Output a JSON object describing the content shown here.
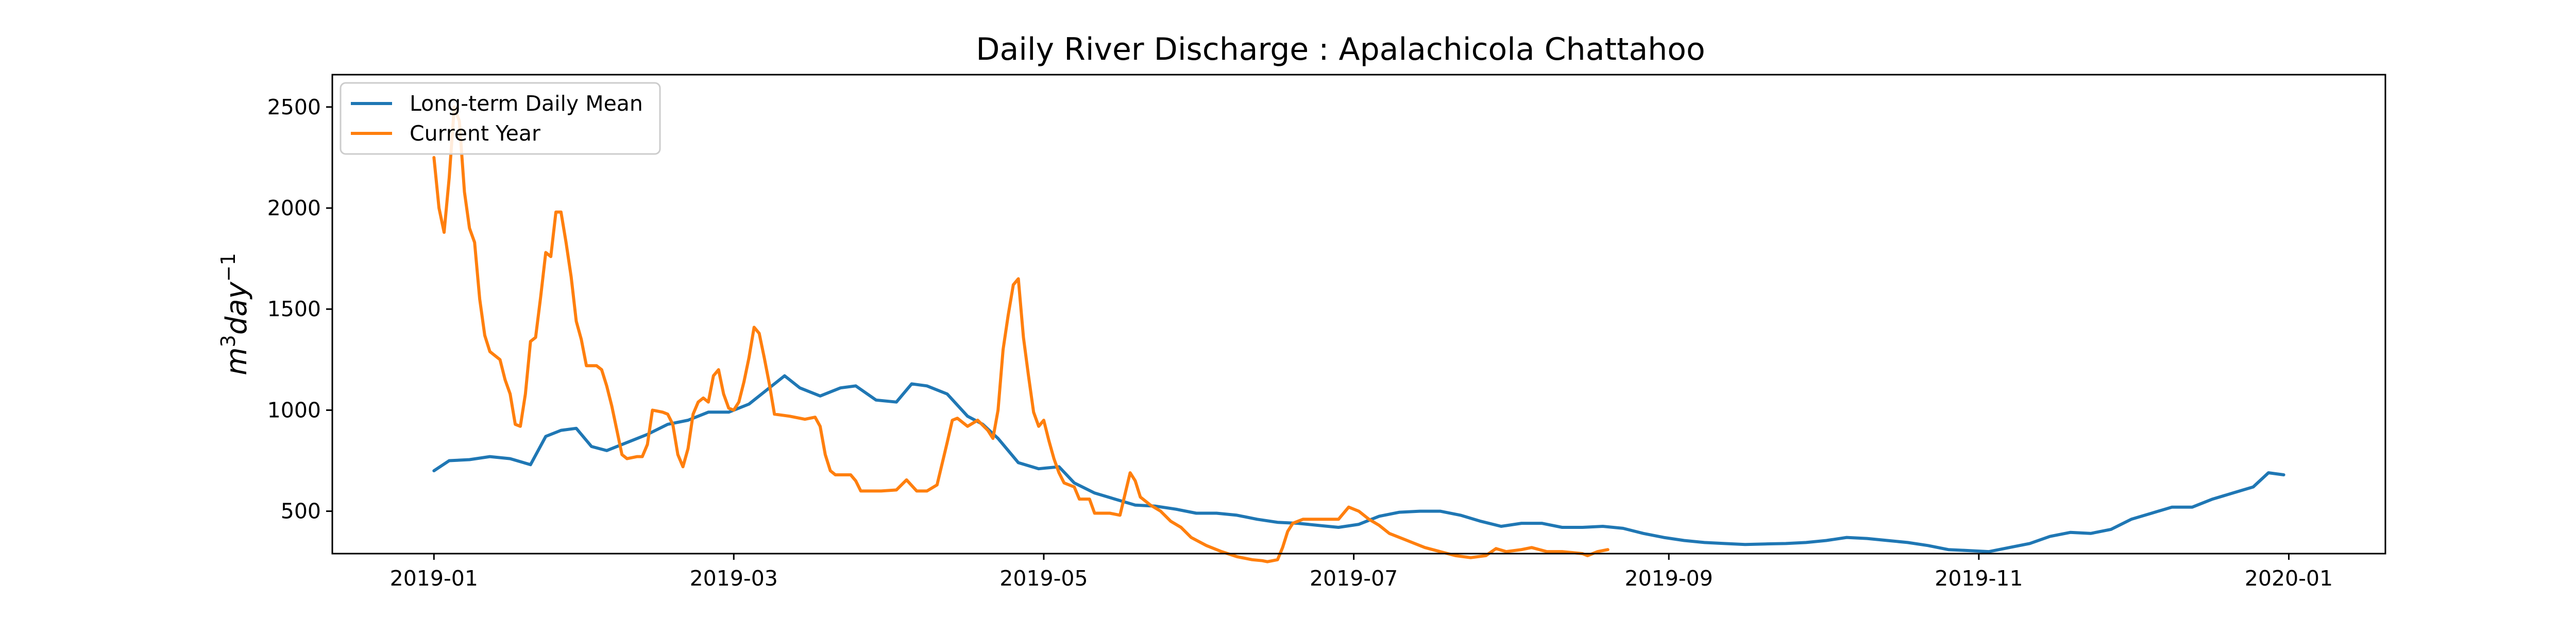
{
  "chart_data": {
    "type": "line",
    "title": "Daily River Discharge : Apalachicola Chattahoo",
    "xlabel": "",
    "ylabel": "m³day⁻¹",
    "ylabel_parts": {
      "base1": "m",
      "exp1": "3",
      "base2": "day",
      "exp2": "−1"
    },
    "x_axis_type": "date",
    "xlim": [
      "2018-12-12",
      "2020-01-20"
    ],
    "ylim": [
      290,
      2660
    ],
    "x_ticks": [
      "2019-01",
      "2019-03",
      "2019-05",
      "2019-07",
      "2019-09",
      "2019-11",
      "2020-01"
    ],
    "x_tick_dates": [
      "2019-01-01",
      "2019-03-01",
      "2019-05-01",
      "2019-07-01",
      "2019-09-01",
      "2019-11-01",
      "2020-01-01"
    ],
    "y_ticks": [
      500,
      1000,
      1500,
      2000,
      2500
    ],
    "grid": false,
    "legend_position": "top-left",
    "series": [
      {
        "name": "Long-term Daily Mean",
        "color": "#1f77b4",
        "points": [
          [
            "2019-01-01",
            700
          ],
          [
            "2019-01-04",
            750
          ],
          [
            "2019-01-08",
            755
          ],
          [
            "2019-01-12",
            770
          ],
          [
            "2019-01-16",
            760
          ],
          [
            "2019-01-20",
            730
          ],
          [
            "2019-01-23",
            870
          ],
          [
            "2019-01-26",
            900
          ],
          [
            "2019-01-29",
            910
          ],
          [
            "2019-02-01",
            820
          ],
          [
            "2019-02-04",
            800
          ],
          [
            "2019-02-08",
            840
          ],
          [
            "2019-02-12",
            880
          ],
          [
            "2019-02-16",
            930
          ],
          [
            "2019-02-20",
            950
          ],
          [
            "2019-02-24",
            990
          ],
          [
            "2019-02-28",
            990
          ],
          [
            "2019-03-04",
            1030
          ],
          [
            "2019-03-08",
            1110
          ],
          [
            "2019-03-11",
            1170
          ],
          [
            "2019-03-14",
            1110
          ],
          [
            "2019-03-18",
            1070
          ],
          [
            "2019-03-22",
            1110
          ],
          [
            "2019-03-25",
            1120
          ],
          [
            "2019-03-29",
            1050
          ],
          [
            "2019-04-02",
            1040
          ],
          [
            "2019-04-05",
            1130
          ],
          [
            "2019-04-08",
            1120
          ],
          [
            "2019-04-12",
            1080
          ],
          [
            "2019-04-16",
            970
          ],
          [
            "2019-04-19",
            930
          ],
          [
            "2019-04-22",
            860
          ],
          [
            "2019-04-26",
            740
          ],
          [
            "2019-04-30",
            710
          ],
          [
            "2019-05-04",
            720
          ],
          [
            "2019-05-07",
            640
          ],
          [
            "2019-05-11",
            590
          ],
          [
            "2019-05-15",
            560
          ],
          [
            "2019-05-19",
            530
          ],
          [
            "2019-05-23",
            525
          ],
          [
            "2019-05-27",
            510
          ],
          [
            "2019-05-31",
            490
          ],
          [
            "2019-06-04",
            490
          ],
          [
            "2019-06-08",
            480
          ],
          [
            "2019-06-12",
            460
          ],
          [
            "2019-06-16",
            445
          ],
          [
            "2019-06-20",
            440
          ],
          [
            "2019-06-24",
            430
          ],
          [
            "2019-06-28",
            420
          ],
          [
            "2019-07-02",
            435
          ],
          [
            "2019-07-06",
            475
          ],
          [
            "2019-07-10",
            495
          ],
          [
            "2019-07-14",
            500
          ],
          [
            "2019-07-18",
            500
          ],
          [
            "2019-07-22",
            480
          ],
          [
            "2019-07-26",
            450
          ],
          [
            "2019-07-30",
            425
          ],
          [
            "2019-08-03",
            440
          ],
          [
            "2019-08-07",
            440
          ],
          [
            "2019-08-11",
            420
          ],
          [
            "2019-08-15",
            420
          ],
          [
            "2019-08-19",
            425
          ],
          [
            "2019-08-23",
            415
          ],
          [
            "2019-08-27",
            390
          ],
          [
            "2019-08-31",
            370
          ],
          [
            "2019-09-04",
            355
          ],
          [
            "2019-09-08",
            345
          ],
          [
            "2019-09-12",
            340
          ],
          [
            "2019-09-16",
            335
          ],
          [
            "2019-09-20",
            338
          ],
          [
            "2019-09-24",
            340
          ],
          [
            "2019-09-28",
            345
          ],
          [
            "2019-10-02",
            355
          ],
          [
            "2019-10-06",
            370
          ],
          [
            "2019-10-10",
            365
          ],
          [
            "2019-10-14",
            355
          ],
          [
            "2019-10-18",
            345
          ],
          [
            "2019-10-22",
            330
          ],
          [
            "2019-10-26",
            310
          ],
          [
            "2019-10-30",
            305
          ],
          [
            "2019-11-03",
            300
          ],
          [
            "2019-11-07",
            320
          ],
          [
            "2019-11-11",
            340
          ],
          [
            "2019-11-15",
            375
          ],
          [
            "2019-11-19",
            395
          ],
          [
            "2019-11-23",
            390
          ],
          [
            "2019-11-27",
            410
          ],
          [
            "2019-12-01",
            460
          ],
          [
            "2019-12-05",
            490
          ],
          [
            "2019-12-09",
            520
          ],
          [
            "2019-12-13",
            520
          ],
          [
            "2019-12-17",
            560
          ],
          [
            "2019-12-21",
            590
          ],
          [
            "2019-12-25",
            620
          ],
          [
            "2019-12-28",
            690
          ],
          [
            "2019-12-31",
            680
          ]
        ]
      },
      {
        "name": "Current Year",
        "color": "#ff7f0e",
        "points": [
          [
            "2019-01-01",
            2250
          ],
          [
            "2019-01-02",
            2000
          ],
          [
            "2019-01-03",
            1880
          ],
          [
            "2019-01-04",
            2150
          ],
          [
            "2019-01-05",
            2500
          ],
          [
            "2019-01-06",
            2430
          ],
          [
            "2019-01-07",
            2080
          ],
          [
            "2019-01-08",
            1900
          ],
          [
            "2019-01-09",
            1830
          ],
          [
            "2019-01-10",
            1550
          ],
          [
            "2019-01-11",
            1370
          ],
          [
            "2019-01-12",
            1290
          ],
          [
            "2019-01-14",
            1250
          ],
          [
            "2019-01-15",
            1150
          ],
          [
            "2019-01-16",
            1080
          ],
          [
            "2019-01-17",
            930
          ],
          [
            "2019-01-18",
            920
          ],
          [
            "2019-01-19",
            1080
          ],
          [
            "2019-01-20",
            1340
          ],
          [
            "2019-01-21",
            1360
          ],
          [
            "2019-01-22",
            1560
          ],
          [
            "2019-01-23",
            1780
          ],
          [
            "2019-01-24",
            1760
          ],
          [
            "2019-01-25",
            1980
          ],
          [
            "2019-01-26",
            1980
          ],
          [
            "2019-01-27",
            1830
          ],
          [
            "2019-01-28",
            1660
          ],
          [
            "2019-01-29",
            1440
          ],
          [
            "2019-01-30",
            1350
          ],
          [
            "2019-01-31",
            1220
          ],
          [
            "2019-02-02",
            1220
          ],
          [
            "2019-02-03",
            1200
          ],
          [
            "2019-02-04",
            1120
          ],
          [
            "2019-02-05",
            1020
          ],
          [
            "2019-02-06",
            900
          ],
          [
            "2019-02-07",
            780
          ],
          [
            "2019-02-08",
            760
          ],
          [
            "2019-02-10",
            770
          ],
          [
            "2019-02-11",
            770
          ],
          [
            "2019-02-12",
            830
          ],
          [
            "2019-02-13",
            1000
          ],
          [
            "2019-02-15",
            990
          ],
          [
            "2019-02-16",
            980
          ],
          [
            "2019-02-17",
            930
          ],
          [
            "2019-02-18",
            780
          ],
          [
            "2019-02-19",
            720
          ],
          [
            "2019-02-20",
            810
          ],
          [
            "2019-02-21",
            980
          ],
          [
            "2019-02-22",
            1040
          ],
          [
            "2019-02-23",
            1060
          ],
          [
            "2019-02-24",
            1040
          ],
          [
            "2019-02-25",
            1170
          ],
          [
            "2019-02-26",
            1200
          ],
          [
            "2019-02-27",
            1080
          ],
          [
            "2019-02-28",
            1010
          ],
          [
            "2019-03-01",
            1000
          ],
          [
            "2019-03-02",
            1040
          ],
          [
            "2019-03-03",
            1140
          ],
          [
            "2019-03-04",
            1260
          ],
          [
            "2019-03-05",
            1410
          ],
          [
            "2019-03-06",
            1380
          ],
          [
            "2019-03-07",
            1260
          ],
          [
            "2019-03-08",
            1130
          ],
          [
            "2019-03-09",
            980
          ],
          [
            "2019-03-12",
            970
          ],
          [
            "2019-03-15",
            955
          ],
          [
            "2019-03-17",
            965
          ],
          [
            "2019-03-18",
            920
          ],
          [
            "2019-03-19",
            780
          ],
          [
            "2019-03-20",
            700
          ],
          [
            "2019-03-21",
            680
          ],
          [
            "2019-03-24",
            680
          ],
          [
            "2019-03-25",
            650
          ],
          [
            "2019-03-26",
            600
          ],
          [
            "2019-03-30",
            600
          ],
          [
            "2019-04-02",
            605
          ],
          [
            "2019-04-04",
            655
          ],
          [
            "2019-04-06",
            600
          ],
          [
            "2019-04-08",
            600
          ],
          [
            "2019-04-10",
            630
          ],
          [
            "2019-04-12",
            840
          ],
          [
            "2019-04-13",
            950
          ],
          [
            "2019-04-14",
            960
          ],
          [
            "2019-04-16",
            920
          ],
          [
            "2019-04-18",
            950
          ],
          [
            "2019-04-20",
            900
          ],
          [
            "2019-04-21",
            860
          ],
          [
            "2019-04-22",
            1000
          ],
          [
            "2019-04-23",
            1300
          ],
          [
            "2019-04-24",
            1470
          ],
          [
            "2019-04-25",
            1620
          ],
          [
            "2019-04-26",
            1650
          ],
          [
            "2019-04-27",
            1360
          ],
          [
            "2019-04-28",
            1170
          ],
          [
            "2019-04-29",
            990
          ],
          [
            "2019-04-30",
            920
          ],
          [
            "2019-05-01",
            950
          ],
          [
            "2019-05-02",
            850
          ],
          [
            "2019-05-03",
            760
          ],
          [
            "2019-05-04",
            690
          ],
          [
            "2019-05-05",
            640
          ],
          [
            "2019-05-07",
            620
          ],
          [
            "2019-05-08",
            560
          ],
          [
            "2019-05-10",
            560
          ],
          [
            "2019-05-11",
            490
          ],
          [
            "2019-05-14",
            490
          ],
          [
            "2019-05-16",
            480
          ],
          [
            "2019-05-18",
            690
          ],
          [
            "2019-05-19",
            650
          ],
          [
            "2019-05-20",
            570
          ],
          [
            "2019-05-22",
            530
          ],
          [
            "2019-05-24",
            500
          ],
          [
            "2019-05-26",
            450
          ],
          [
            "2019-05-28",
            420
          ],
          [
            "2019-05-30",
            370
          ],
          [
            "2019-06-02",
            330
          ],
          [
            "2019-06-05",
            300
          ],
          [
            "2019-06-08",
            275
          ],
          [
            "2019-06-11",
            260
          ],
          [
            "2019-06-13",
            255
          ],
          [
            "2019-06-14",
            250
          ],
          [
            "2019-06-16",
            260
          ],
          [
            "2019-06-17",
            320
          ],
          [
            "2019-06-18",
            400
          ],
          [
            "2019-06-19",
            440
          ],
          [
            "2019-06-21",
            460
          ],
          [
            "2019-06-25",
            460
          ],
          [
            "2019-06-28",
            460
          ],
          [
            "2019-06-30",
            520
          ],
          [
            "2019-07-02",
            500
          ],
          [
            "2019-07-04",
            460
          ],
          [
            "2019-07-06",
            430
          ],
          [
            "2019-07-08",
            390
          ],
          [
            "2019-07-11",
            360
          ],
          [
            "2019-07-13",
            340
          ],
          [
            "2019-07-15",
            320
          ],
          [
            "2019-07-18",
            300
          ],
          [
            "2019-07-21",
            280
          ],
          [
            "2019-07-24",
            270
          ],
          [
            "2019-07-27",
            280
          ],
          [
            "2019-07-29",
            315
          ],
          [
            "2019-07-31",
            300
          ],
          [
            "2019-08-03",
            310
          ],
          [
            "2019-08-05",
            320
          ],
          [
            "2019-08-08",
            300
          ],
          [
            "2019-08-11",
            300
          ],
          [
            "2019-08-13",
            295
          ],
          [
            "2019-08-15",
            290
          ],
          [
            "2019-08-16",
            280
          ],
          [
            "2019-08-18",
            300
          ],
          [
            "2019-08-20",
            310
          ]
        ]
      }
    ]
  }
}
